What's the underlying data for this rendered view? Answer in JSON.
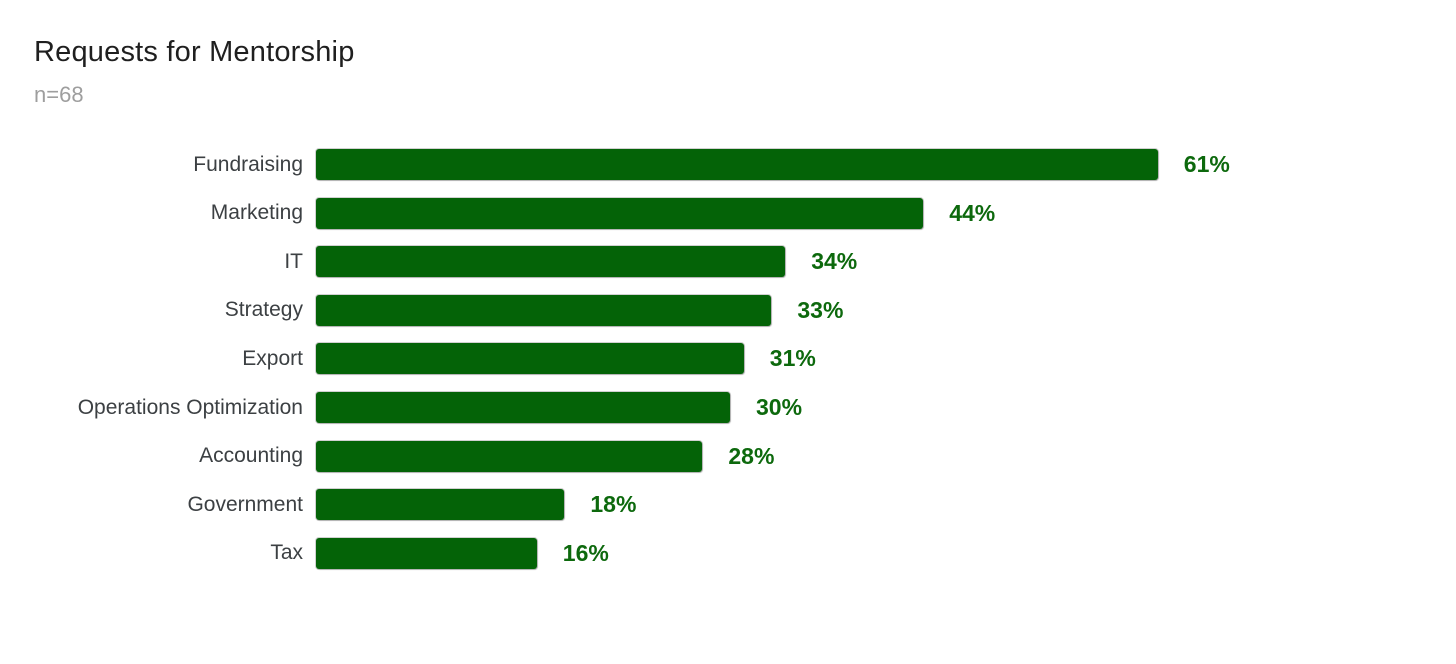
{
  "header": {
    "title": "Requests for Mentorship",
    "subtitle": "n=68"
  },
  "chart_data": {
    "type": "bar",
    "orientation": "horizontal",
    "title": "Requests for Mentorship",
    "subtitle": "n=68",
    "categories": [
      "Fundraising",
      "Marketing",
      "IT",
      "Strategy",
      "Export",
      "Operations Optimization",
      "Accounting",
      "Government",
      "Tax"
    ],
    "values": [
      61,
      44,
      34,
      33,
      31,
      30,
      28,
      18,
      16
    ],
    "value_suffix": "%",
    "xlabel": "",
    "ylabel": "",
    "xlim": [
      0,
      100
    ],
    "grid": false,
    "legend": false,
    "bar_color": "#046307",
    "value_label_color": "#0d690d",
    "category_label_color": "#3c4043",
    "title_color": "#1f1f1f",
    "subtitle_color": "#9e9e9e"
  }
}
